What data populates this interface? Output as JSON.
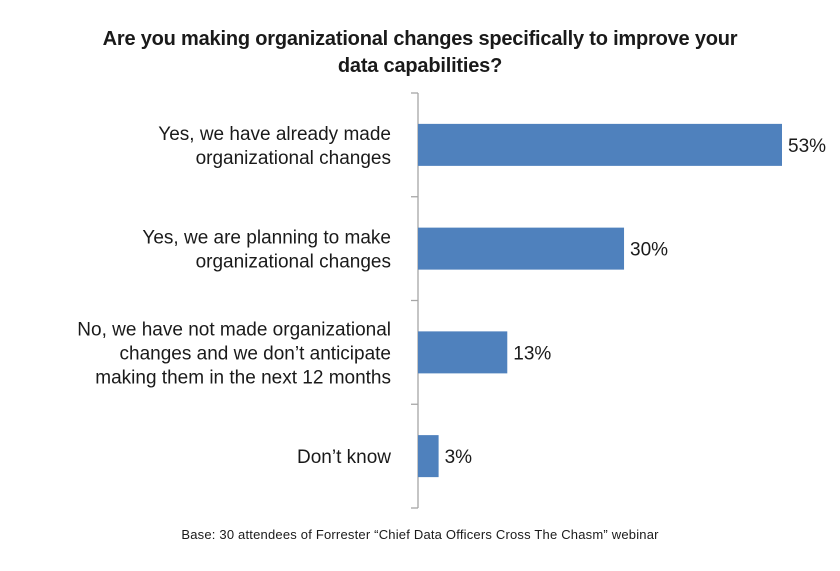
{
  "chart_data": {
    "type": "bar",
    "orientation": "horizontal",
    "title_lines": [
      "Are you making organizational changes specifically to improve your",
      "data capabilities?"
    ],
    "categories": [
      [
        "Yes, we have already made",
        "organizational changes"
      ],
      [
        "Yes, we are planning to make",
        "organizational changes"
      ],
      [
        "No, we have not made organizational",
        "changes and we don’t anticipate",
        "making them in the next 12 months"
      ],
      [
        "Don’t know"
      ]
    ],
    "values": [
      53,
      30,
      13,
      3
    ],
    "value_labels": [
      "53%",
      "30%",
      "13%",
      "3%"
    ],
    "xlim": [
      0,
      53
    ],
    "bar_color": "#4F81BD",
    "axis_color": "#A6A6A6",
    "footnote": "Base: 30 attendees of Forrester “Chief Data Officers Cross The Chasm” webinar"
  }
}
